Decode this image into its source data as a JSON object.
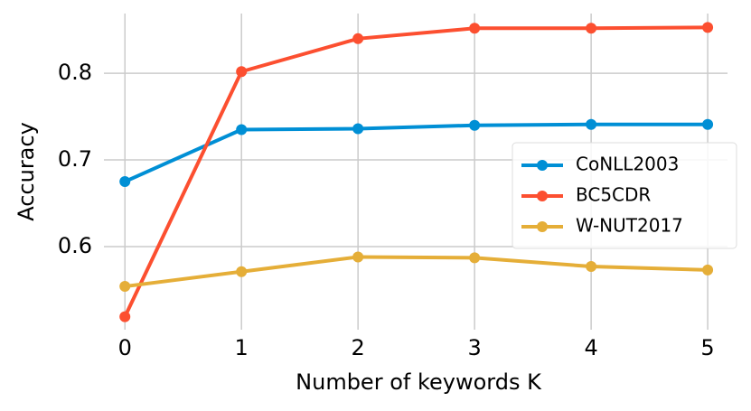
{
  "chart_data": {
    "type": "line",
    "xlabel": "Number of keywords K",
    "ylabel": "Accuracy",
    "x": [
      0,
      1,
      2,
      3,
      4,
      5
    ],
    "series": [
      {
        "name": "CoNLL2003",
        "color": "#008fd5",
        "values": [
          0.675,
          0.735,
          0.736,
          0.74,
          0.741,
          0.741
        ]
      },
      {
        "name": "BC5CDR",
        "color": "#fc4f30",
        "values": [
          0.519,
          0.802,
          0.84,
          0.852,
          0.852,
          0.853
        ]
      },
      {
        "name": "W-NUT2017",
        "color": "#e5ae38",
        "values": [
          0.554,
          0.571,
          0.588,
          0.587,
          0.577,
          0.573
        ]
      }
    ],
    "xlim": [
      -0.18,
      5.17
    ],
    "ylim": [
      0.504,
      0.869
    ],
    "xticks": [
      0,
      1,
      2,
      3,
      4,
      5
    ],
    "yticks": [
      0.6,
      0.7,
      0.8
    ],
    "grid": true,
    "legend": "right"
  }
}
